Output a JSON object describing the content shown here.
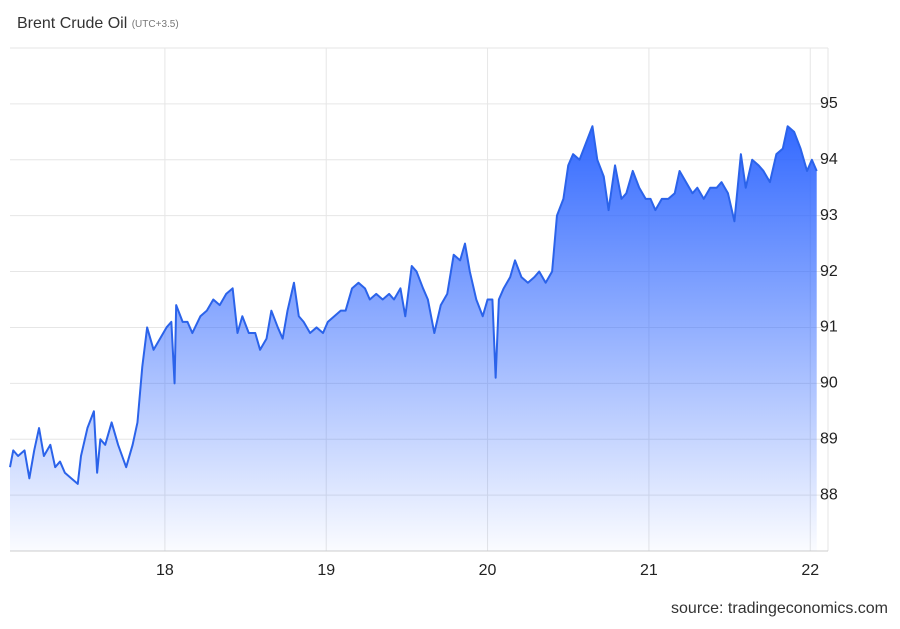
{
  "chart_data": {
    "type": "area",
    "title": "Brent Crude Oil",
    "subtitle": "(UTC+3.5)",
    "source": "source: tradingeconomics.com",
    "x": [
      17.04,
      17.06,
      17.09,
      17.13,
      17.16,
      17.19,
      17.22,
      17.25,
      17.29,
      17.32,
      17.35,
      17.38,
      17.42,
      17.46,
      17.48,
      17.52,
      17.56,
      17.58,
      17.6,
      17.63,
      17.67,
      17.71,
      17.76,
      17.8,
      17.83,
      17.86,
      17.89,
      17.93,
      17.97,
      18.01,
      18.04,
      18.06,
      18.07,
      18.11,
      18.14,
      18.17,
      18.22,
      18.26,
      18.3,
      18.34,
      18.38,
      18.42,
      18.45,
      18.48,
      18.52,
      18.56,
      18.59,
      18.63,
      18.66,
      18.7,
      18.73,
      18.76,
      18.8,
      18.83,
      18.86,
      18.9,
      18.94,
      18.98,
      19.01,
      19.05,
      19.09,
      19.12,
      19.16,
      19.2,
      19.24,
      19.27,
      19.31,
      19.35,
      19.39,
      19.42,
      19.46,
      19.49,
      19.53,
      19.56,
      19.6,
      19.63,
      19.67,
      19.71,
      19.75,
      19.79,
      19.83,
      19.86,
      19.89,
      19.93,
      19.97,
      20.0,
      20.03,
      20.05,
      20.07,
      20.1,
      20.14,
      20.17,
      20.21,
      20.25,
      20.29,
      20.32,
      20.36,
      20.4,
      20.43,
      20.47,
      20.5,
      20.53,
      20.57,
      20.61,
      20.65,
      20.68,
      20.72,
      20.75,
      20.79,
      20.83,
      20.86,
      20.9,
      20.94,
      20.98,
      21.01,
      21.04,
      21.08,
      21.12,
      21.16,
      21.19,
      21.23,
      21.27,
      21.3,
      21.34,
      21.38,
      21.42,
      21.45,
      21.49,
      21.53,
      21.57,
      21.6,
      21.64,
      21.68,
      21.71,
      21.75,
      21.79,
      21.83,
      21.86,
      21.9,
      21.94,
      21.98,
      22.01,
      22.04
    ],
    "series": [
      {
        "name": "Brent Crude Oil",
        "color": "#2b63ea",
        "values": [
          88.5,
          88.8,
          88.7,
          88.8,
          88.3,
          88.8,
          89.2,
          88.7,
          88.9,
          88.5,
          88.6,
          88.4,
          88.3,
          88.2,
          88.7,
          89.2,
          89.5,
          88.4,
          89.0,
          88.9,
          89.3,
          88.9,
          88.5,
          88.9,
          89.3,
          90.3,
          91.0,
          90.6,
          90.8,
          91.0,
          91.1,
          90.0,
          91.4,
          91.1,
          91.1,
          90.9,
          91.2,
          91.3,
          91.5,
          91.4,
          91.6,
          91.7,
          90.9,
          91.2,
          90.9,
          90.9,
          90.6,
          90.8,
          91.3,
          91.0,
          90.8,
          91.3,
          91.8,
          91.2,
          91.1,
          90.9,
          91.0,
          90.9,
          91.1,
          91.2,
          91.3,
          91.3,
          91.7,
          91.8,
          91.7,
          91.5,
          91.6,
          91.5,
          91.6,
          91.5,
          91.7,
          91.2,
          92.1,
          92.0,
          91.7,
          91.5,
          90.9,
          91.4,
          91.6,
          92.3,
          92.2,
          92.5,
          92.0,
          91.5,
          91.2,
          91.5,
          91.5,
          90.1,
          91.5,
          91.7,
          91.9,
          92.2,
          91.9,
          91.8,
          91.9,
          92.0,
          91.8,
          92.0,
          93.0,
          93.3,
          93.9,
          94.1,
          94.0,
          94.3,
          94.6,
          94.0,
          93.7,
          93.1,
          93.9,
          93.3,
          93.4,
          93.8,
          93.5,
          93.3,
          93.3,
          93.1,
          93.3,
          93.3,
          93.4,
          93.8,
          93.6,
          93.4,
          93.5,
          93.3,
          93.5,
          93.5,
          93.6,
          93.4,
          92.9,
          94.1,
          93.5,
          94.0,
          93.9,
          93.8,
          93.6,
          94.1,
          94.2,
          94.6,
          94.5,
          94.2,
          93.8,
          94.0,
          93.8
        ]
      }
    ],
    "xlim": [
      17.04,
      22.11
    ],
    "xticks": [
      18,
      19,
      20,
      21,
      22
    ],
    "ylim": [
      87,
      96
    ],
    "yticks": [
      88,
      89,
      90,
      91,
      92,
      93,
      94,
      95
    ],
    "grid": true
  }
}
